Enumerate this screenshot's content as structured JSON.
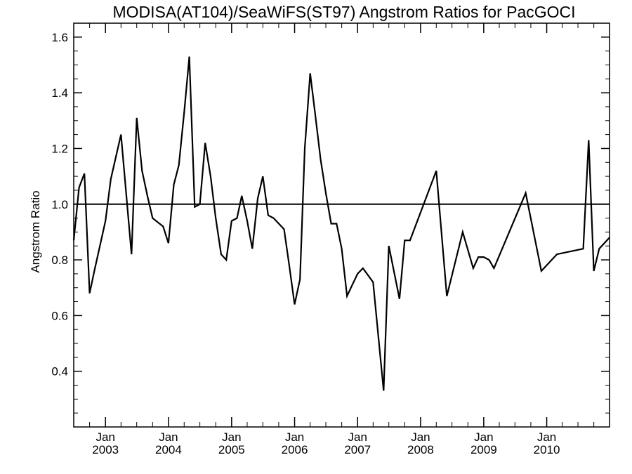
{
  "chart_data": {
    "type": "line",
    "title": "MODISA(AT104)/SeaWiFS(ST97)  Angstrom Ratios for PacGOCI",
    "ylabel": "Angstrom Ratio",
    "xlabel": "",
    "ylim": [
      0.2,
      1.65
    ],
    "xlim": [
      "2002-07-01",
      "2010-12-31"
    ],
    "yticks": [
      0.4,
      0.6,
      0.8,
      1.0,
      1.2,
      1.4,
      1.6
    ],
    "ytick_labels": [
      "0.4",
      "0.6",
      "0.8",
      "1.0",
      "1.2",
      "1.4",
      "1.6"
    ],
    "xticks": [
      {
        "date": "2003-01-01",
        "month": "Jan",
        "year": "2003"
      },
      {
        "date": "2004-01-01",
        "month": "Jan",
        "year": "2004"
      },
      {
        "date": "2005-01-01",
        "month": "Jan",
        "year": "2005"
      },
      {
        "date": "2006-01-01",
        "month": "Jan",
        "year": "2006"
      },
      {
        "date": "2007-01-01",
        "month": "Jan",
        "year": "2007"
      },
      {
        "date": "2008-01-01",
        "month": "Jan",
        "year": "2008"
      },
      {
        "date": "2009-01-01",
        "month": "Jan",
        "year": "2009"
      },
      {
        "date": "2010-01-01",
        "month": "Jan",
        "year": "2010"
      }
    ],
    "reference_line": 1.0,
    "grid": false,
    "series": [
      {
        "color": "#000000",
        "points": [
          [
            "2002-07-01",
            0.87
          ],
          [
            "2002-08-01",
            1.06
          ],
          [
            "2002-09-01",
            1.11
          ],
          [
            "2002-10-01",
            0.68
          ],
          [
            "2002-11-01",
            0.77
          ],
          [
            "2003-01-01",
            0.94
          ],
          [
            "2003-02-01",
            1.09
          ],
          [
            "2003-04-01",
            1.25
          ],
          [
            "2003-06-01",
            0.82
          ],
          [
            "2003-07-01",
            1.31
          ],
          [
            "2003-08-01",
            1.12
          ],
          [
            "2003-09-01",
            1.03
          ],
          [
            "2003-10-01",
            0.95
          ],
          [
            "2003-12-01",
            0.92
          ],
          [
            "2004-01-01",
            0.86
          ],
          [
            "2004-02-01",
            1.07
          ],
          [
            "2004-03-01",
            1.14
          ],
          [
            "2004-04-01",
            1.33
          ],
          [
            "2004-05-01",
            1.53
          ],
          [
            "2004-06-01",
            0.99
          ],
          [
            "2004-07-01",
            1.0
          ],
          [
            "2004-08-01",
            1.22
          ],
          [
            "2004-09-01",
            1.1
          ],
          [
            "2004-10-01",
            0.95
          ],
          [
            "2004-11-01",
            0.82
          ],
          [
            "2004-12-01",
            0.8
          ],
          [
            "2005-01-01",
            0.94
          ],
          [
            "2005-02-01",
            0.95
          ],
          [
            "2005-03-01",
            1.03
          ],
          [
            "2005-04-01",
            0.94
          ],
          [
            "2005-05-01",
            0.84
          ],
          [
            "2005-06-01",
            1.02
          ],
          [
            "2005-07-01",
            1.1
          ],
          [
            "2005-08-01",
            0.96
          ],
          [
            "2005-09-01",
            0.95
          ],
          [
            "2005-11-01",
            0.91
          ],
          [
            "2005-12-01",
            0.78
          ],
          [
            "2006-01-01",
            0.64
          ],
          [
            "2006-02-01",
            0.73
          ],
          [
            "2006-03-01",
            1.2
          ],
          [
            "2006-04-01",
            1.47
          ],
          [
            "2006-05-01",
            1.32
          ],
          [
            "2006-06-01",
            1.16
          ],
          [
            "2006-07-01",
            1.04
          ],
          [
            "2006-08-01",
            0.93
          ],
          [
            "2006-09-01",
            0.93
          ],
          [
            "2006-10-01",
            0.84
          ],
          [
            "2006-11-01",
            0.67
          ],
          [
            "2006-12-01",
            0.71
          ],
          [
            "2007-01-01",
            0.75
          ],
          [
            "2007-02-01",
            0.77
          ],
          [
            "2007-04-01",
            0.72
          ],
          [
            "2007-06-01",
            0.33
          ],
          [
            "2007-07-01",
            0.85
          ],
          [
            "2007-09-01",
            0.66
          ],
          [
            "2007-10-01",
            0.87
          ],
          [
            "2007-11-01",
            0.87
          ],
          [
            "2008-04-01",
            1.12
          ],
          [
            "2008-06-01",
            0.67
          ],
          [
            "2008-09-01",
            0.9
          ],
          [
            "2008-11-01",
            0.77
          ],
          [
            "2008-12-01",
            0.81
          ],
          [
            "2009-01-01",
            0.81
          ],
          [
            "2009-02-01",
            0.8
          ],
          [
            "2009-03-01",
            0.77
          ],
          [
            "2009-09-01",
            1.04
          ],
          [
            "2009-12-01",
            0.76
          ],
          [
            "2010-03-01",
            0.82
          ],
          [
            "2010-08-01",
            0.84
          ],
          [
            "2010-09-01",
            1.23
          ],
          [
            "2010-10-01",
            0.76
          ],
          [
            "2010-11-01",
            0.84
          ],
          [
            "2010-12-31",
            0.88
          ]
        ]
      }
    ]
  }
}
